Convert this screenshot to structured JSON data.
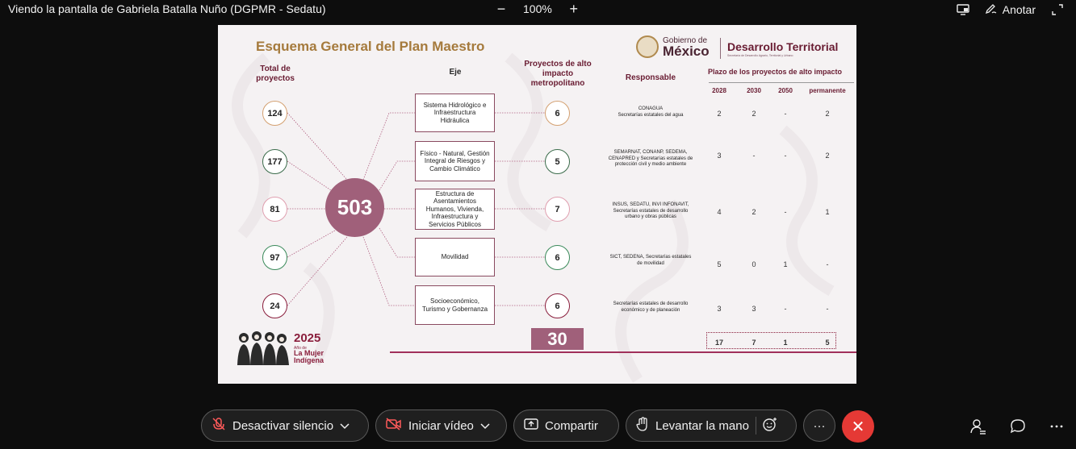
{
  "window": {
    "title": "Viendo la pantalla de Gabriela Batalla Nuño (DGPMR - Sedatu)",
    "zoom": "100%",
    "annotate_label": "Anotar"
  },
  "slide": {
    "title": "Esquema General del Plan Maestro",
    "logo_gob_line1": "Gobierno de",
    "logo_gob_line2": "México",
    "logo_dt": "Desarrollo Territorial",
    "logo_dt_sub": "Secretaría de Desarrollo Agrario, Territorial y Urbano",
    "headers": {
      "total": "Total de proyectos",
      "eje": "Eje",
      "proyectos": "Proyectos de alto impacto metropolitano",
      "responsable": "Responsable",
      "plazo": "Plazo de los proyectos de alto impacto",
      "years": [
        "2028",
        "2030",
        "2050",
        "permanente"
      ]
    },
    "total_all": "503",
    "rows": [
      {
        "total": "124",
        "eje": "Sistema Hidrológico e Infraestructura Hidráulica",
        "proyectos": "6",
        "responsable": "CONAGUA\nSecretarías estatales del agua",
        "plazo": [
          "2",
          "2",
          "-",
          "2"
        ]
      },
      {
        "total": "177",
        "eje": "Físico - Natural, Gestión Integral de Riesgos y Cambio Climático",
        "proyectos": "5",
        "responsable": "SEMARNAT, CONANP, SEDEMA, CENAPRED y Secretarías estatales de protección civil y medio ambiente",
        "plazo": [
          "3",
          "-",
          "-",
          "2"
        ]
      },
      {
        "total": "81",
        "eje": "Estructura de Asentamientos Humanos, Vivienda, Infraestructura y Servicios Públicos",
        "proyectos": "7",
        "responsable": "INSUS, SEDATU, INVI INFONAVIT, Secretarías estatales de desarrollo urbano y obras públicas",
        "plazo": [
          "4",
          "2",
          "-",
          "1"
        ]
      },
      {
        "total": "97",
        "eje": "Movilidad",
        "proyectos": "6",
        "responsable": "SICT, SEDENA, Secretarías estatales de movilidad",
        "plazo": [
          "5",
          "0",
          "1",
          "-"
        ]
      },
      {
        "total": "24",
        "eje": "Socioeconómico, Turismo y Gobernanza",
        "proyectos": "6",
        "responsable": "Secretarías estatales de desarrollo económico y de planeación",
        "plazo": [
          "3",
          "3",
          "-",
          "-"
        ]
      }
    ],
    "total_proyectos": "30",
    "totals_plazo": [
      "17",
      "7",
      "1",
      "5"
    ],
    "year_badge": "2025",
    "year_badge_sub": "Año de",
    "year_badge_line1": "La Mujer",
    "year_badge_line2": "Indígena"
  },
  "toolbar": {
    "mute_label": "Desactivar silencio",
    "video_label": "Iniciar vídeo",
    "share_label": "Compartir",
    "raise_hand_label": "Levantar la mano",
    "more_label": "···"
  },
  "colors": {
    "brand": "#691c32",
    "accent_gold": "#a57a3c",
    "big_circle": "#a0607a",
    "end_call": "#e53935"
  }
}
